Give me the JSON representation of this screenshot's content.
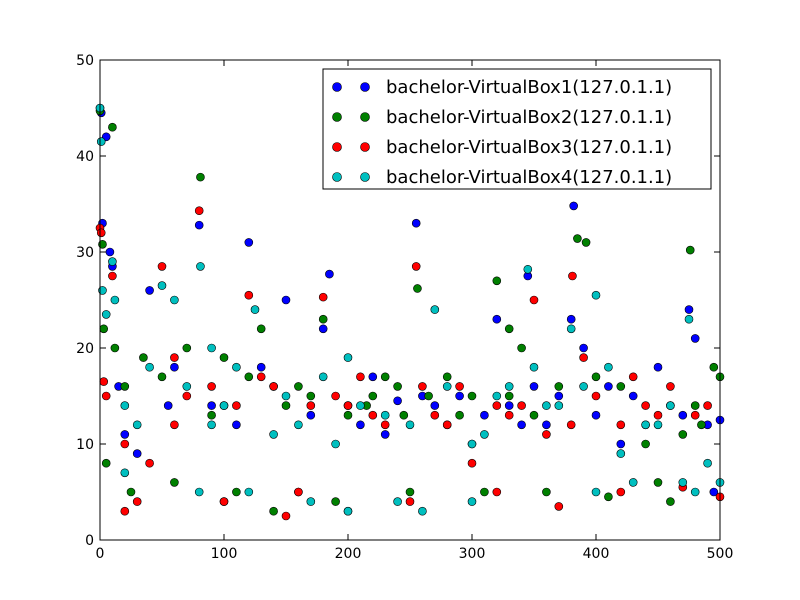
{
  "chart_data": {
    "type": "scatter",
    "title": "",
    "xlabel": "",
    "ylabel": "",
    "xlim": [
      0,
      500
    ],
    "ylim": [
      0,
      50
    ],
    "xticks": [
      "0",
      "100",
      "200",
      "300",
      "400",
      "500"
    ],
    "yticks": [
      "0",
      "10",
      "20",
      "30",
      "40",
      "50"
    ],
    "legend_position": "top-right",
    "series": [
      {
        "name": "bachelor-VirtualBox1(127.0.1.1)",
        "color": "#0000ff",
        "points": [
          [
            0,
            45
          ],
          [
            1,
            44.5
          ],
          [
            2,
            33
          ],
          [
            5,
            42
          ],
          [
            8,
            30
          ],
          [
            10,
            28.5
          ],
          [
            15,
            16
          ],
          [
            20,
            11
          ],
          [
            30,
            9
          ],
          [
            40,
            26
          ],
          [
            55,
            14
          ],
          [
            80,
            32.8
          ],
          [
            60,
            18
          ],
          [
            100,
            4
          ],
          [
            120,
            31
          ],
          [
            140,
            16
          ],
          [
            150,
            25
          ],
          [
            160,
            5
          ],
          [
            180,
            22
          ],
          [
            185,
            27.7
          ],
          [
            200,
            14
          ],
          [
            210,
            12
          ],
          [
            220,
            17
          ],
          [
            240,
            14.5
          ],
          [
            255,
            33
          ],
          [
            260,
            15
          ],
          [
            280,
            12
          ],
          [
            290,
            15
          ],
          [
            300,
            10
          ],
          [
            310,
            13
          ],
          [
            320,
            23
          ],
          [
            330,
            14
          ],
          [
            345,
            27.5
          ],
          [
            350,
            16
          ],
          [
            360,
            12
          ],
          [
            370,
            15
          ],
          [
            380,
            23
          ],
          [
            382,
            34.8
          ],
          [
            390,
            20
          ],
          [
            400,
            13
          ],
          [
            410,
            16
          ],
          [
            420,
            10
          ],
          [
            440,
            12
          ],
          [
            450,
            18
          ],
          [
            460,
            14
          ],
          [
            475,
            24
          ],
          [
            480,
            21
          ],
          [
            490,
            12
          ],
          [
            500,
            12.5
          ],
          [
            495,
            5
          ],
          [
            90,
            14
          ],
          [
            110,
            12
          ],
          [
            130,
            18
          ],
          [
            170,
            13
          ],
          [
            230,
            11
          ],
          [
            270,
            14
          ],
          [
            340,
            12
          ],
          [
            430,
            15
          ],
          [
            470,
            13
          ]
        ]
      },
      {
        "name": "bachelor-VirtualBox2(127.0.1.1)",
        "color": "#008000",
        "points": [
          [
            0,
            44.7
          ],
          [
            2,
            30.8
          ],
          [
            3,
            22
          ],
          [
            5,
            8
          ],
          [
            10,
            43
          ],
          [
            12,
            20
          ],
          [
            20,
            16
          ],
          [
            35,
            19
          ],
          [
            50,
            17
          ],
          [
            70,
            20
          ],
          [
            81,
            37.8
          ],
          [
            90,
            13
          ],
          [
            100,
            19
          ],
          [
            120,
            17
          ],
          [
            130,
            22
          ],
          [
            150,
            14
          ],
          [
            160,
            16
          ],
          [
            180,
            23
          ],
          [
            200,
            13
          ],
          [
            215,
            14
          ],
          [
            220,
            15
          ],
          [
            230,
            17
          ],
          [
            245,
            13
          ],
          [
            256,
            26.2
          ],
          [
            265,
            15
          ],
          [
            280,
            17
          ],
          [
            300,
            15
          ],
          [
            320,
            27
          ],
          [
            330,
            15
          ],
          [
            340,
            20
          ],
          [
            350,
            13
          ],
          [
            370,
            16
          ],
          [
            385,
            31.4
          ],
          [
            392,
            31
          ],
          [
            400,
            17
          ],
          [
            410,
            4.5
          ],
          [
            420,
            16
          ],
          [
            440,
            10
          ],
          [
            460,
            4
          ],
          [
            476,
            30.2
          ],
          [
            485,
            12
          ],
          [
            495,
            18
          ],
          [
            500,
            17
          ],
          [
            140,
            3
          ],
          [
            190,
            4
          ],
          [
            250,
            5
          ],
          [
            310,
            5
          ],
          [
            360,
            5
          ],
          [
            450,
            6
          ],
          [
            470,
            11
          ],
          [
            480,
            14
          ],
          [
            25,
            5
          ],
          [
            60,
            6
          ],
          [
            110,
            5
          ],
          [
            170,
            15
          ],
          [
            240,
            16
          ],
          [
            290,
            13
          ],
          [
            330,
            22
          ]
        ]
      },
      {
        "name": "bachelor-VirtualBox3(127.0.1.1)",
        "color": "#ff0000",
        "points": [
          [
            0,
            32.5
          ],
          [
            1,
            32
          ],
          [
            3,
            16.5
          ],
          [
            5,
            15
          ],
          [
            10,
            27.5
          ],
          [
            20,
            10
          ],
          [
            30,
            4
          ],
          [
            40,
            8
          ],
          [
            50,
            28.5
          ],
          [
            60,
            19
          ],
          [
            70,
            15
          ],
          [
            80,
            34.3
          ],
          [
            90,
            16
          ],
          [
            100,
            14
          ],
          [
            120,
            25.5
          ],
          [
            130,
            17
          ],
          [
            140,
            16
          ],
          [
            160,
            5
          ],
          [
            180,
            25.3
          ],
          [
            190,
            15
          ],
          [
            200,
            14
          ],
          [
            210,
            17
          ],
          [
            230,
            12
          ],
          [
            255,
            28.5
          ],
          [
            260,
            16
          ],
          [
            270,
            13
          ],
          [
            290,
            16
          ],
          [
            300,
            8
          ],
          [
            320,
            14
          ],
          [
            340,
            14
          ],
          [
            350,
            25
          ],
          [
            360,
            11
          ],
          [
            381,
            27.5
          ],
          [
            390,
            19
          ],
          [
            400,
            15
          ],
          [
            420,
            12
          ],
          [
            430,
            17
          ],
          [
            440,
            14
          ],
          [
            460,
            16
          ],
          [
            480,
            13
          ],
          [
            490,
            14
          ],
          [
            500,
            4.5
          ],
          [
            20,
            3
          ],
          [
            100,
            4
          ],
          [
            150,
            2.5
          ],
          [
            200,
            3
          ],
          [
            250,
            4
          ],
          [
            320,
            5
          ],
          [
            370,
            3.5
          ],
          [
            420,
            5
          ],
          [
            470,
            5.5
          ],
          [
            60,
            12
          ],
          [
            110,
            14
          ],
          [
            170,
            14
          ],
          [
            220,
            13
          ],
          [
            280,
            12
          ],
          [
            330,
            13
          ],
          [
            380,
            12
          ],
          [
            450,
            13
          ]
        ]
      },
      {
        "name": "bachelor-VirtualBox4(127.0.1.1)",
        "color": "#00bfbf",
        "points": [
          [
            0,
            45
          ],
          [
            1,
            41.5
          ],
          [
            2,
            26
          ],
          [
            5,
            23.5
          ],
          [
            10,
            29
          ],
          [
            12,
            25
          ],
          [
            20,
            14
          ],
          [
            30,
            12
          ],
          [
            40,
            18
          ],
          [
            50,
            26.5
          ],
          [
            60,
            25
          ],
          [
            70,
            16
          ],
          [
            81,
            28.5
          ],
          [
            90,
            20
          ],
          [
            100,
            14
          ],
          [
            110,
            18
          ],
          [
            125,
            24
          ],
          [
            140,
            11
          ],
          [
            160,
            12
          ],
          [
            180,
            17
          ],
          [
            190,
            10
          ],
          [
            200,
            19
          ],
          [
            230,
            13
          ],
          [
            250,
            12
          ],
          [
            270,
            24
          ],
          [
            280,
            16
          ],
          [
            300,
            10
          ],
          [
            320,
            15
          ],
          [
            330,
            16
          ],
          [
            345,
            28.2
          ],
          [
            350,
            18
          ],
          [
            360,
            14
          ],
          [
            380,
            22
          ],
          [
            390,
            16
          ],
          [
            400,
            25.5
          ],
          [
            410,
            18
          ],
          [
            420,
            9
          ],
          [
            440,
            12
          ],
          [
            460,
            14
          ],
          [
            475,
            23
          ],
          [
            490,
            8
          ],
          [
            500,
            6
          ],
          [
            20,
            7
          ],
          [
            80,
            5
          ],
          [
            120,
            5
          ],
          [
            170,
            4
          ],
          [
            200,
            3
          ],
          [
            240,
            4
          ],
          [
            260,
            3
          ],
          [
            300,
            4
          ],
          [
            400,
            5
          ],
          [
            430,
            6
          ],
          [
            470,
            6
          ],
          [
            480,
            5
          ],
          [
            90,
            12
          ],
          [
            150,
            15
          ],
          [
            210,
            14
          ],
          [
            310,
            11
          ],
          [
            370,
            14
          ],
          [
            450,
            12
          ]
        ]
      }
    ]
  }
}
